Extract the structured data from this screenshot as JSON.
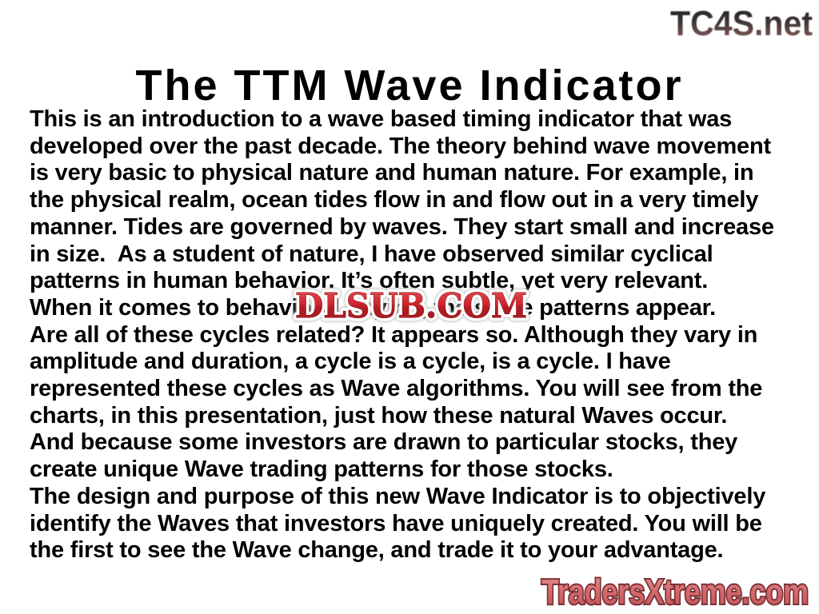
{
  "slide": {
    "title": "The TTM Wave Indicator",
    "body_lines": [
      "This is an introduction to a wave based timing indicator that was",
      "developed over the past decade. The theory behind wave movement",
      "is very basic to physical nature and human nature. For example, in",
      "the physical realm, ocean tides flow in and flow out in a very timely",
      "manner. Tides are governed by waves. They start small and increase",
      "in size.  As a student of nature, I have observed similar cyclical",
      "patterns in human behavior. It’s often subtle, yet very relevant.",
      "When it comes to behavioral buying, the same patterns appear.",
      "Are all of these cycles related? It appears so. Although they vary in",
      "amplitude and duration, a cycle is a cycle, is a cycle. I have",
      "represented these cycles as Wave algorithms. You will see from the",
      "charts, in this presentation, just how these natural Waves occur.",
      "And because some investors are drawn to particular stocks, they",
      "create unique Wave trading patterns for those stocks.",
      "The design and purpose of this new Wave Indicator is to objectively",
      "identify the Waves that investors have uniquely created. You will be",
      "the first to see the Wave change, and trade it to your advantage."
    ]
  },
  "watermarks": {
    "top_right": "TC4S.net",
    "center": "DLSUB.COM",
    "bottom_right": "TradersXtreme.com"
  },
  "colors": {
    "background": "#ffffff",
    "text": "#000000",
    "title_text": "#000000",
    "dlsub_red": "#c9252b",
    "dlsub_red_dark": "#a31a21",
    "dlsub_outline": "#ffffff",
    "tradersxtreme_fill": "#d4696c",
    "tradersxtreme_outline": "#7c3136",
    "tradersxtreme_glow": "#ffffff",
    "tc4s_gradient_top": "#1e1e1e",
    "tc4s_gradient_bottom": "#93625c"
  }
}
